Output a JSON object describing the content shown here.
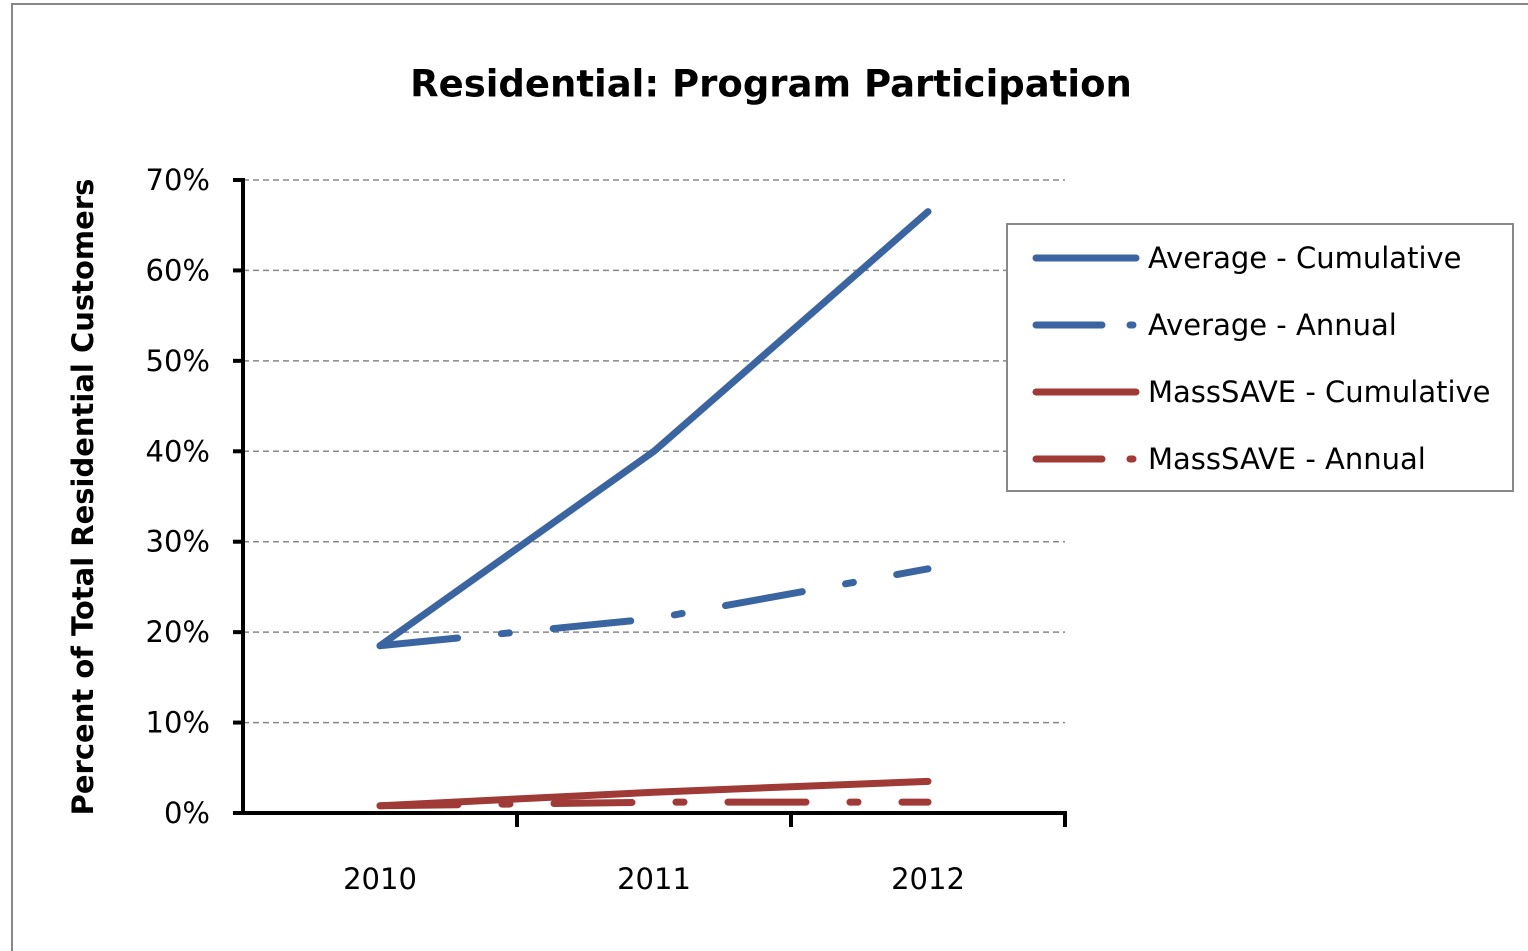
{
  "chart_data": {
    "type": "line",
    "title": "Residential:  Program Participation",
    "y_label": "Percent of Total Residential Customers",
    "categories": [
      "2010",
      "2011",
      "2012"
    ],
    "series": [
      {
        "name": "Average - Cumulative",
        "color": "#3b65a0",
        "dashed": false,
        "values": [
          18.5,
          40,
          66.5
        ]
      },
      {
        "name": "Average - Annual",
        "color": "#3b65a0",
        "dashed": true,
        "values": [
          18.5,
          21.5,
          27
        ]
      },
      {
        "name": "MassSAVE - Cumulative",
        "color": "#a03a36",
        "dashed": false,
        "values": [
          0.8,
          2.3,
          3.5
        ]
      },
      {
        "name": "MassSAVE - Annual",
        "color": "#a03a36",
        "dashed": true,
        "values": [
          0.8,
          1.2,
          1.2
        ]
      }
    ],
    "ylim": [
      0,
      70
    ],
    "yticks": [
      {
        "value": 0,
        "label": "0%"
      },
      {
        "value": 10,
        "label": "10%"
      },
      {
        "value": 20,
        "label": "20%"
      },
      {
        "value": 30,
        "label": "30%"
      },
      {
        "value": 40,
        "label": "40%"
      },
      {
        "value": 50,
        "label": "50%"
      },
      {
        "value": 60,
        "label": "60%"
      },
      {
        "value": 70,
        "label": "70%"
      }
    ],
    "grid": true
  }
}
